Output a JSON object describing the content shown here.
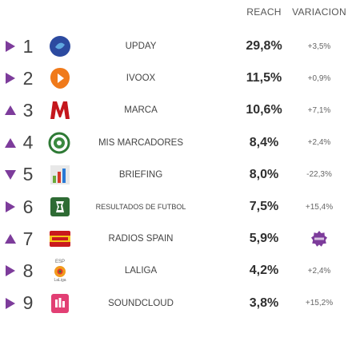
{
  "header": {
    "reach": "REACH",
    "variation": "VARIACION"
  },
  "colors": {
    "accent": "#7d3c9b",
    "text": "#444444"
  },
  "rows": [
    {
      "trend": "right",
      "rank": "1",
      "icon": "upday-logo-icon",
      "name": "UPDAY",
      "reach": "29,8%",
      "variation": "+3,5%"
    },
    {
      "trend": "right",
      "rank": "2",
      "icon": "ivoox-logo-icon",
      "name": "IVOOX",
      "reach": "11,5%",
      "variation": "+0,9%"
    },
    {
      "trend": "up",
      "rank": "3",
      "icon": "marca-logo-icon",
      "name": "MARCA",
      "reach": "10,6%",
      "variation": "+7,1%"
    },
    {
      "trend": "up",
      "rank": "4",
      "icon": "mis-marcadores-logo-icon",
      "name": "MIS MARCADORES",
      "reach": "8,4%",
      "variation": "+2,4%"
    },
    {
      "trend": "down",
      "rank": "5",
      "icon": "briefing-logo-icon",
      "name": "BRIEFING",
      "reach": "8,0%",
      "variation": "-22,3%"
    },
    {
      "trend": "right",
      "rank": "6",
      "icon": "resultados-futbol-logo-icon",
      "name": "RESULTADOS DE FUTBOL",
      "reach": "7,5%",
      "variation": "+15,4%"
    },
    {
      "trend": "up",
      "rank": "7",
      "icon": "radios-spain-logo-icon",
      "name": "RADIOS SPAIN",
      "reach": "5,9%",
      "variation": "",
      "variation_icon": "new-badge-icon"
    },
    {
      "trend": "right",
      "rank": "8",
      "icon": "laliga-logo-icon",
      "name": "LALIGA",
      "reach": "4,2%",
      "variation": "+2,4%"
    },
    {
      "trend": "right",
      "rank": "9",
      "icon": "soundcloud-logo-icon",
      "name": "SOUNDCLOUD",
      "reach": "3,8%",
      "variation": "+15,2%"
    }
  ],
  "logo_text": {
    "laliga_top": "ESP",
    "laliga_bottom": "LaLiga"
  }
}
